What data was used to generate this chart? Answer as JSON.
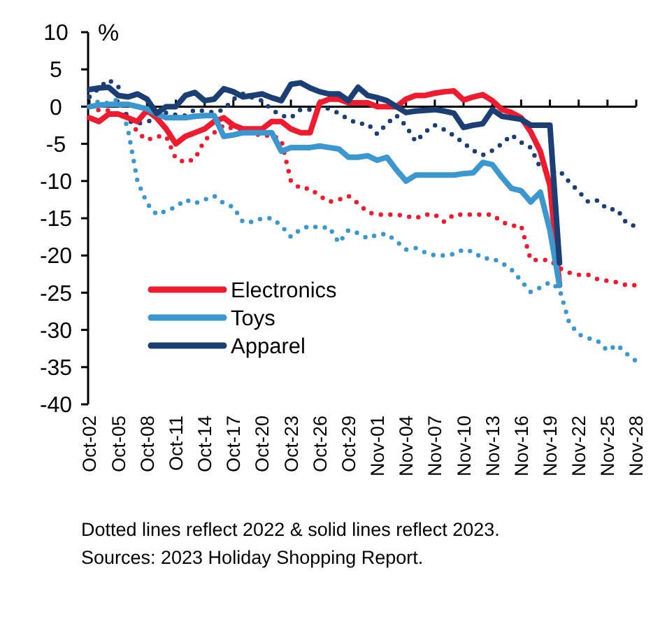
{
  "chart_data": {
    "type": "line",
    "ylabel": "%",
    "ylim": [
      -40,
      10
    ],
    "yticks": [
      -40,
      -35,
      -30,
      -25,
      -20,
      -15,
      -10,
      -5,
      0,
      5,
      10
    ],
    "xlim": [
      "--10-02",
      "--11-28"
    ],
    "xticks": [
      {
        "value": "--10-02",
        "label": "Oct-02"
      },
      {
        "value": "--10-05",
        "label": "Oct-05"
      },
      {
        "value": "--10-08",
        "label": "Oct-08"
      },
      {
        "value": "--10-11",
        "label": "Oct-11"
      },
      {
        "value": "--10-14",
        "label": "Oct-14"
      },
      {
        "value": "--10-17",
        "label": "Oct-17"
      },
      {
        "value": "--10-20",
        "label": "Oct-20"
      },
      {
        "value": "--10-23",
        "label": "Oct-23"
      },
      {
        "value": "--10-26",
        "label": "Oct-26"
      },
      {
        "value": "--10-29",
        "label": "Oct-29"
      },
      {
        "value": "--11-01",
        "label": "Nov-01"
      },
      {
        "value": "--11-04",
        "label": "Nov-04"
      },
      {
        "value": "--11-07",
        "label": "Nov-07"
      },
      {
        "value": "--11-10",
        "label": "Nov-10"
      },
      {
        "value": "--11-13",
        "label": "Nov-13"
      },
      {
        "value": "--11-16",
        "label": "Nov-16"
      },
      {
        "value": "--11-19",
        "label": "Nov-19"
      },
      {
        "value": "--11-22",
        "label": "Nov-22"
      },
      {
        "value": "--11-25",
        "label": "Nov-25"
      },
      {
        "value": "--11-28",
        "label": "Nov-28"
      }
    ],
    "x": [
      "--10-02",
      "--10-03",
      "--10-04",
      "--10-05",
      "--10-06",
      "--10-07",
      "--10-08",
      "--10-09",
      "--10-10",
      "--10-11",
      "--10-12",
      "--10-13",
      "--10-14",
      "--10-15",
      "--10-16",
      "--10-17",
      "--10-18",
      "--10-19",
      "--10-20",
      "--10-21",
      "--10-22",
      "--10-23",
      "--10-24",
      "--10-25",
      "--10-26",
      "--10-27",
      "--10-28",
      "--10-29",
      "--10-30",
      "--10-31",
      "--11-01",
      "--11-02",
      "--11-03",
      "--11-04",
      "--11-05",
      "--11-06",
      "--11-07",
      "--11-08",
      "--11-09",
      "--11-10",
      "--11-11",
      "--11-12",
      "--11-13",
      "--11-14",
      "--11-15",
      "--11-16",
      "--11-17",
      "--11-18",
      "--11-19",
      "--11-20",
      "--11-21",
      "--11-22",
      "--11-23",
      "--11-24",
      "--11-25",
      "--11-26",
      "--11-27",
      "--11-28"
    ],
    "legend": "bottom left",
    "line_style": "solid",
    "marker": "none",
    "series": [
      {
        "color": "#ee1c2e",
        "line_style": "dotted",
        "values": [
          0,
          -0.5,
          -0.5,
          -1,
          -1,
          -3.5,
          -4.5,
          -4,
          -4,
          -7,
          -7.5,
          -7,
          -4.5,
          -3.5,
          -2.5,
          -3,
          -3,
          -3.5,
          -4,
          -3.8,
          -4.5,
          -10,
          -11,
          -11,
          -12,
          -12.8,
          -12.5,
          -12,
          -13,
          -14.2,
          -14.5,
          -14.5,
          -14.5,
          -14.7,
          -15,
          -14.5,
          -14.5,
          -15.5,
          -14.5,
          -14.5,
          -14.5,
          -14.5,
          -14.5,
          -15.5,
          -16,
          -16,
          -20.6,
          -20.6,
          -20.6,
          -21.7,
          -22.3,
          -22.6,
          -22.6,
          -23.2,
          -23.4,
          -23.6,
          -24,
          -24
        ]
      },
      {
        "color": "#3d97cf",
        "line_style": "dotted",
        "values": [
          1.3,
          0.5,
          0.5,
          1,
          -3,
          -10,
          -13,
          -14.5,
          -14,
          -13.5,
          -12.5,
          -13,
          -12.5,
          -12,
          -13,
          -13.5,
          -15.5,
          -15.5,
          -15,
          -15,
          -16,
          -17.5,
          -16.5,
          -16,
          -16.3,
          -16.2,
          -18.3,
          -16.6,
          -17,
          -17.7,
          -17.2,
          -17.1,
          -18.1,
          -19.2,
          -19,
          -19.6,
          -20,
          -20,
          -19.8,
          -19.2,
          -19.5,
          -20.4,
          -20.4,
          -21,
          -21.9,
          -23.4,
          -24.9,
          -24.3,
          -23.6,
          -24.5,
          -29,
          -30.6,
          -31.1,
          -31.5,
          -32.8,
          -32,
          -33.2,
          -34.2
        ]
      },
      {
        "color": "#1b3f73",
        "line_style": "dotted",
        "values": [
          1.3,
          2.5,
          3.6,
          2.7,
          -1.9,
          -2.3,
          -2,
          -1.7,
          -0.8,
          -1.1,
          -1.2,
          -0.4,
          -0.6,
          -0.8,
          -0.4,
          1,
          1.7,
          1.2,
          0.8,
          -0.4,
          -1.2,
          -1.5,
          -0.4,
          -0.4,
          0,
          -0.3,
          -0.9,
          -1.7,
          -2.3,
          -2.3,
          -3.7,
          -2.3,
          -1.2,
          -2.6,
          -4.7,
          -3.4,
          -2.5,
          -3.1,
          -3.9,
          -4.9,
          -5.9,
          -6.5,
          -5.9,
          -5,
          -3.8,
          -4.8,
          -5.5,
          -8.2,
          -8.9,
          -8.6,
          -10.1,
          -11.4,
          -12.8,
          -12.6,
          -13.8,
          -13.8,
          -15.7,
          -16.1
        ]
      },
      {
        "name": "Electronics",
        "color": "#ee1c2e",
        "values": [
          -1.5,
          -2,
          -1,
          -1,
          -1.5,
          -2,
          -0.5,
          -1.5,
          -3,
          -5,
          -4,
          -3.5,
          -3,
          -2,
          -1.5,
          -2.5,
          -3,
          -3,
          -3,
          -2,
          -2,
          -3,
          -3.5,
          -3.5,
          0.5,
          1,
          1,
          0.5,
          0.5,
          0.5,
          0,
          0,
          0,
          1,
          1.5,
          1.5,
          1.8,
          2,
          2.1,
          0.9,
          1.3,
          1.6,
          0.8,
          -0.4,
          -0.8,
          -1.5,
          -3.4,
          -6,
          -10.6,
          -24,
          null,
          null,
          null,
          null,
          null,
          null,
          null,
          null
        ]
      },
      {
        "name": "Toys",
        "color": "#3d97cf",
        "values": [
          0,
          0.2,
          0.3,
          0.3,
          0.3,
          0,
          -0.3,
          -1,
          -1.5,
          -1.5,
          -1.5,
          -1.3,
          -1.2,
          -1.2,
          -4,
          -3.8,
          -3.5,
          -3.5,
          -3.5,
          -3.5,
          -6,
          -5.5,
          -5.5,
          -5.5,
          -5.3,
          -5.5,
          -5.7,
          -6.8,
          -6.8,
          -6.6,
          -7.2,
          -6.8,
          -8.5,
          -10,
          -9.2,
          -9.2,
          -9.2,
          -9.2,
          -9.2,
          -9,
          -8.9,
          -7.5,
          -7.8,
          -9.5,
          -11,
          -11.3,
          -12.8,
          -11.5,
          -16.6,
          -24,
          null,
          null,
          null,
          null,
          null,
          null,
          null,
          null
        ]
      },
      {
        "name": "Apparel",
        "color": "#1b3f73",
        "values": [
          2.3,
          2.5,
          2.6,
          1.5,
          1.3,
          1.7,
          1,
          -0.9,
          0,
          0,
          1.5,
          1.9,
          0.8,
          1,
          2.4,
          2,
          1.3,
          1.5,
          1.7,
          1.2,
          0.8,
          3,
          3.2,
          2.5,
          2,
          1.7,
          1.7,
          0.8,
          2.6,
          1.5,
          1.2,
          0.8,
          0,
          -0.8,
          -0.6,
          -0.5,
          -0.4,
          -0.6,
          -0.9,
          -2.8,
          -2.5,
          -2.3,
          -0.4,
          -1.3,
          -1.5,
          -1.7,
          -2.5,
          -2.5,
          -2.5,
          -21,
          null,
          null,
          null,
          null,
          null,
          null,
          null,
          null
        ]
      }
    ],
    "annotations": [
      "Dotted lines reflect 2022 & solid lines reflect 2023.",
      "Sources: 2023 Holiday Shopping Report."
    ]
  }
}
